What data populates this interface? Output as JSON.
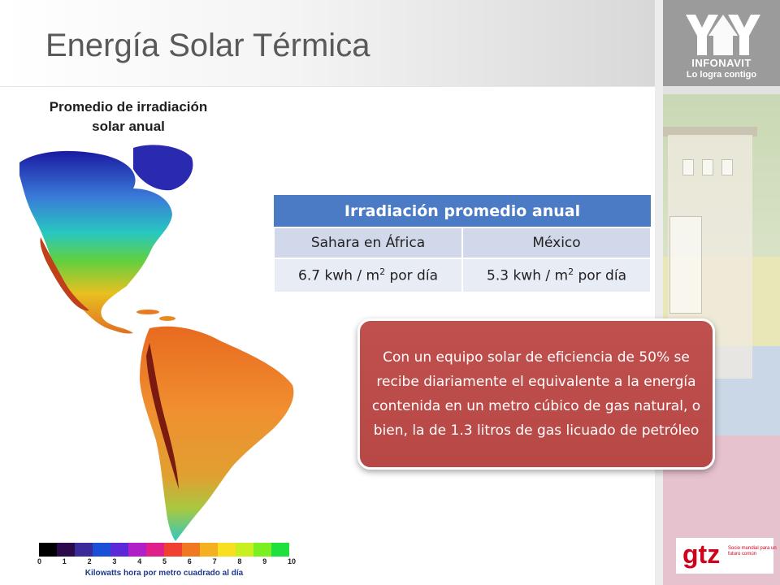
{
  "slide": {
    "title": "Energía Solar Térmica"
  },
  "logos": {
    "infonavit_name": "INFONAVIT",
    "infonavit_slogan": "Lo logra contigo",
    "gtz_name": "gtz",
    "gtz_tagline": "Socio mundial para un futuro común"
  },
  "map": {
    "title_line1": "Promedio de irradiación",
    "title_line2": "solar anual",
    "scale_ticks": [
      "0",
      "1",
      "2",
      "3",
      "4",
      "5",
      "6",
      "7",
      "8",
      "9",
      "10"
    ],
    "scale_caption": "Kilowatts hora por metro cuadrado al día",
    "scale_colors": [
      "#000000",
      "#2a0a4a",
      "#3b2a9a",
      "#1a4fd8",
      "#5a2ad8",
      "#b020c8",
      "#e0208a",
      "#f04030",
      "#f07820",
      "#f4b020",
      "#f8e020",
      "#c8f020",
      "#7af020",
      "#20e040"
    ]
  },
  "table": {
    "header": "Irradiación promedio anual",
    "columns": [
      "Sahara en África",
      "México"
    ],
    "rows": [
      {
        "value": "6.7 kwh / m",
        "sup": "2",
        "suffix": " por día"
      },
      {
        "value": "5.3 kwh / m",
        "sup": "2",
        "suffix": " por día"
      }
    ]
  },
  "callout": {
    "text": "Con un equipo solar de eficiencia de 50% se recibe diariamente el equivalente a la energía contenida en un metro cúbico de gas natural, o bien, la de 1.3 litros de gas licuado de petróleo"
  }
}
